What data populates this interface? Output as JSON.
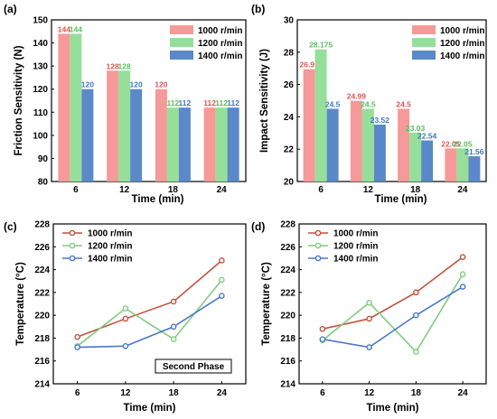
{
  "chart_data": [
    {
      "panel": "(a)",
      "type": "bar",
      "categories": [
        "6",
        "12",
        "18",
        "24"
      ],
      "series": [
        {
          "name": "1000 r/min",
          "values": [
            144,
            128,
            120,
            112
          ],
          "color": "#f59a98"
        },
        {
          "name": "1200 r/min",
          "values": [
            144,
            128,
            112,
            112
          ],
          "color": "#95df9a"
        },
        {
          "name": "1400 r/min",
          "values": [
            120,
            120,
            112,
            112
          ],
          "color": "#5a88c8"
        }
      ],
      "data_label_colors": [
        "#e05555",
        "#58c060",
        "#3f79c0"
      ],
      "xlabel": "Time (min)",
      "ylabel": "Friction Sensitivity (N)",
      "ylim": [
        80,
        150
      ],
      "yticks": [
        80,
        90,
        100,
        110,
        120,
        130,
        140,
        150
      ],
      "legend": "top-right"
    },
    {
      "panel": "(b)",
      "type": "bar",
      "categories": [
        "6",
        "12",
        "18",
        "24"
      ],
      "series": [
        {
          "name": "1000 r/min",
          "values": [
            26.95,
            24.99,
            24.5,
            22.05
          ],
          "labels": [
            "26.95",
            "24.99",
            "24.5",
            "22.05"
          ],
          "color": "#f59a98"
        },
        {
          "name": "1200 r/min",
          "values": [
            28.175,
            24.5,
            23.03,
            22.05
          ],
          "labels": [
            "28.175",
            "24.5",
            "23.03",
            "22.05"
          ],
          "color": "#95df9a"
        },
        {
          "name": "1400 r/min",
          "values": [
            24.5,
            23.52,
            22.54,
            21.56
          ],
          "labels": [
            "24.5",
            "23.52",
            "22.54",
            "21.56"
          ],
          "color": "#5a88c8"
        }
      ],
      "data_label_colors": [
        "#e05555",
        "#58c060",
        "#3f79c0"
      ],
      "xlabel": "Time (min)",
      "ylabel": "Impact Sensitivity (J)",
      "ylim": [
        20,
        30
      ],
      "yticks": [
        20,
        22,
        24,
        26,
        28,
        30
      ],
      "legend": "top-right"
    },
    {
      "panel": "(c)",
      "type": "line",
      "x": [
        6,
        12,
        18,
        24
      ],
      "series": [
        {
          "name": "1000 r/min",
          "values": [
            218.1,
            219.7,
            221.2,
            224.8
          ],
          "color": "#c4513a"
        },
        {
          "name": "1200 r/min",
          "values": [
            217.3,
            220.6,
            217.9,
            223.1
          ],
          "color": "#80cc80"
        },
        {
          "name": "1400 r/min",
          "values": [
            217.2,
            217.3,
            219.0,
            221.7
          ],
          "color": "#4a78c8"
        }
      ],
      "xlabel": "Time (min)",
      "ylabel": "Temperature (°C)",
      "ylim": [
        214,
        228
      ],
      "yticks": [
        214,
        216,
        218,
        220,
        222,
        224,
        226,
        228
      ],
      "legend": "top-left",
      "annotation": "Second Phase"
    },
    {
      "panel": "(d)",
      "type": "line",
      "x": [
        6,
        12,
        18,
        24
      ],
      "series": [
        {
          "name": "1000 r/min",
          "values": [
            218.8,
            219.7,
            222.0,
            225.1
          ],
          "color": "#c4513a"
        },
        {
          "name": "1200 r/min",
          "values": [
            217.8,
            221.1,
            216.8,
            223.6
          ],
          "color": "#80cc80"
        },
        {
          "name": "1400 r/min",
          "values": [
            217.9,
            217.2,
            220.0,
            222.5
          ],
          "color": "#4a78c8"
        }
      ],
      "xlabel": "Time (min)",
      "ylabel": "Temperature (°C)",
      "ylim": [
        214,
        228
      ],
      "yticks": [
        214,
        216,
        218,
        220,
        222,
        224,
        226,
        228
      ],
      "legend": "top-left"
    }
  ]
}
